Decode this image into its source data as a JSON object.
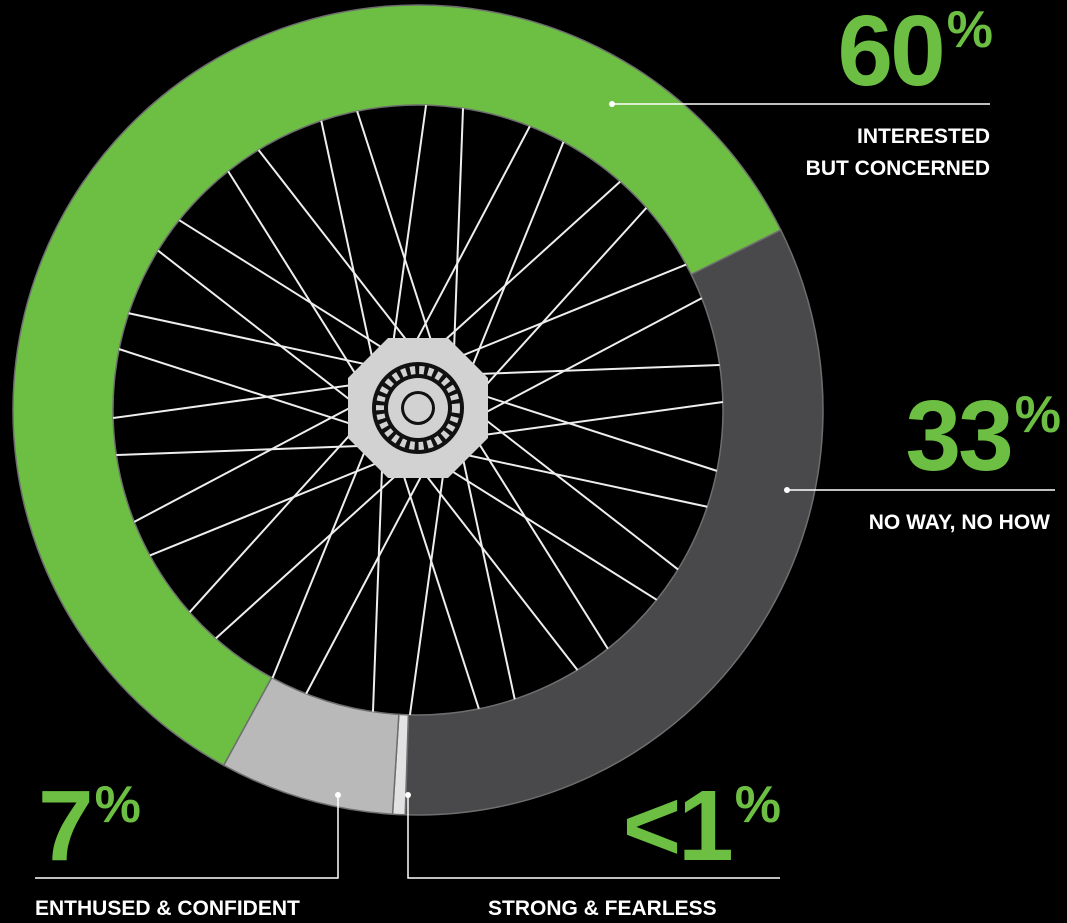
{
  "chart_data": {
    "type": "pie",
    "donut": true,
    "categories": [
      "NO WAY, NO HOW",
      "STRONG & FEARLESS",
      "ENTHUSED & CONFIDENT",
      "INTERESTED\nBUT CONCERNED"
    ],
    "values": [
      33,
      0.5,
      7,
      60
    ],
    "value_labels": [
      "33%",
      "<1%",
      "7%",
      "60%"
    ],
    "colors": [
      "#49494b",
      "#e2e2e2",
      "#b9b9b9",
      "#6cbf43"
    ]
  }
}
